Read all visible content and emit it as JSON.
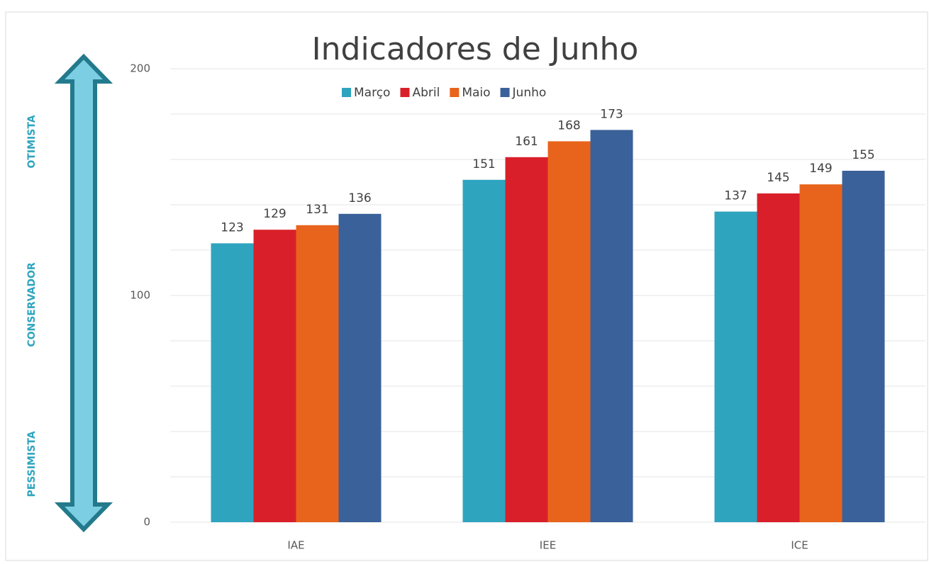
{
  "chart_data": {
    "type": "bar",
    "title": "Indicadores de Junho",
    "categories": [
      "IAE",
      "IEE",
      "ICE"
    ],
    "series": [
      {
        "name": "Março",
        "color": "#2ea4bf",
        "values": [
          123,
          151,
          137
        ]
      },
      {
        "name": "Abril",
        "color": "#d9202a",
        "values": [
          129,
          161,
          145
        ]
      },
      {
        "name": "Maio",
        "color": "#e8641c",
        "values": [
          131,
          168,
          149
        ]
      },
      {
        "name": "Junho",
        "color": "#3a6199",
        "values": [
          136,
          173,
          155
        ]
      }
    ],
    "ylim": [
      0,
      200
    ],
    "yticks": [
      0,
      100,
      200
    ],
    "ygrid": [
      0,
      20,
      40,
      60,
      80,
      100,
      120,
      140,
      160,
      180,
      200
    ],
    "grid": true,
    "legend": "top",
    "side_labels": [
      "OTIMISTA",
      "CONSERVADOR",
      "PESSIMISTA"
    ]
  }
}
